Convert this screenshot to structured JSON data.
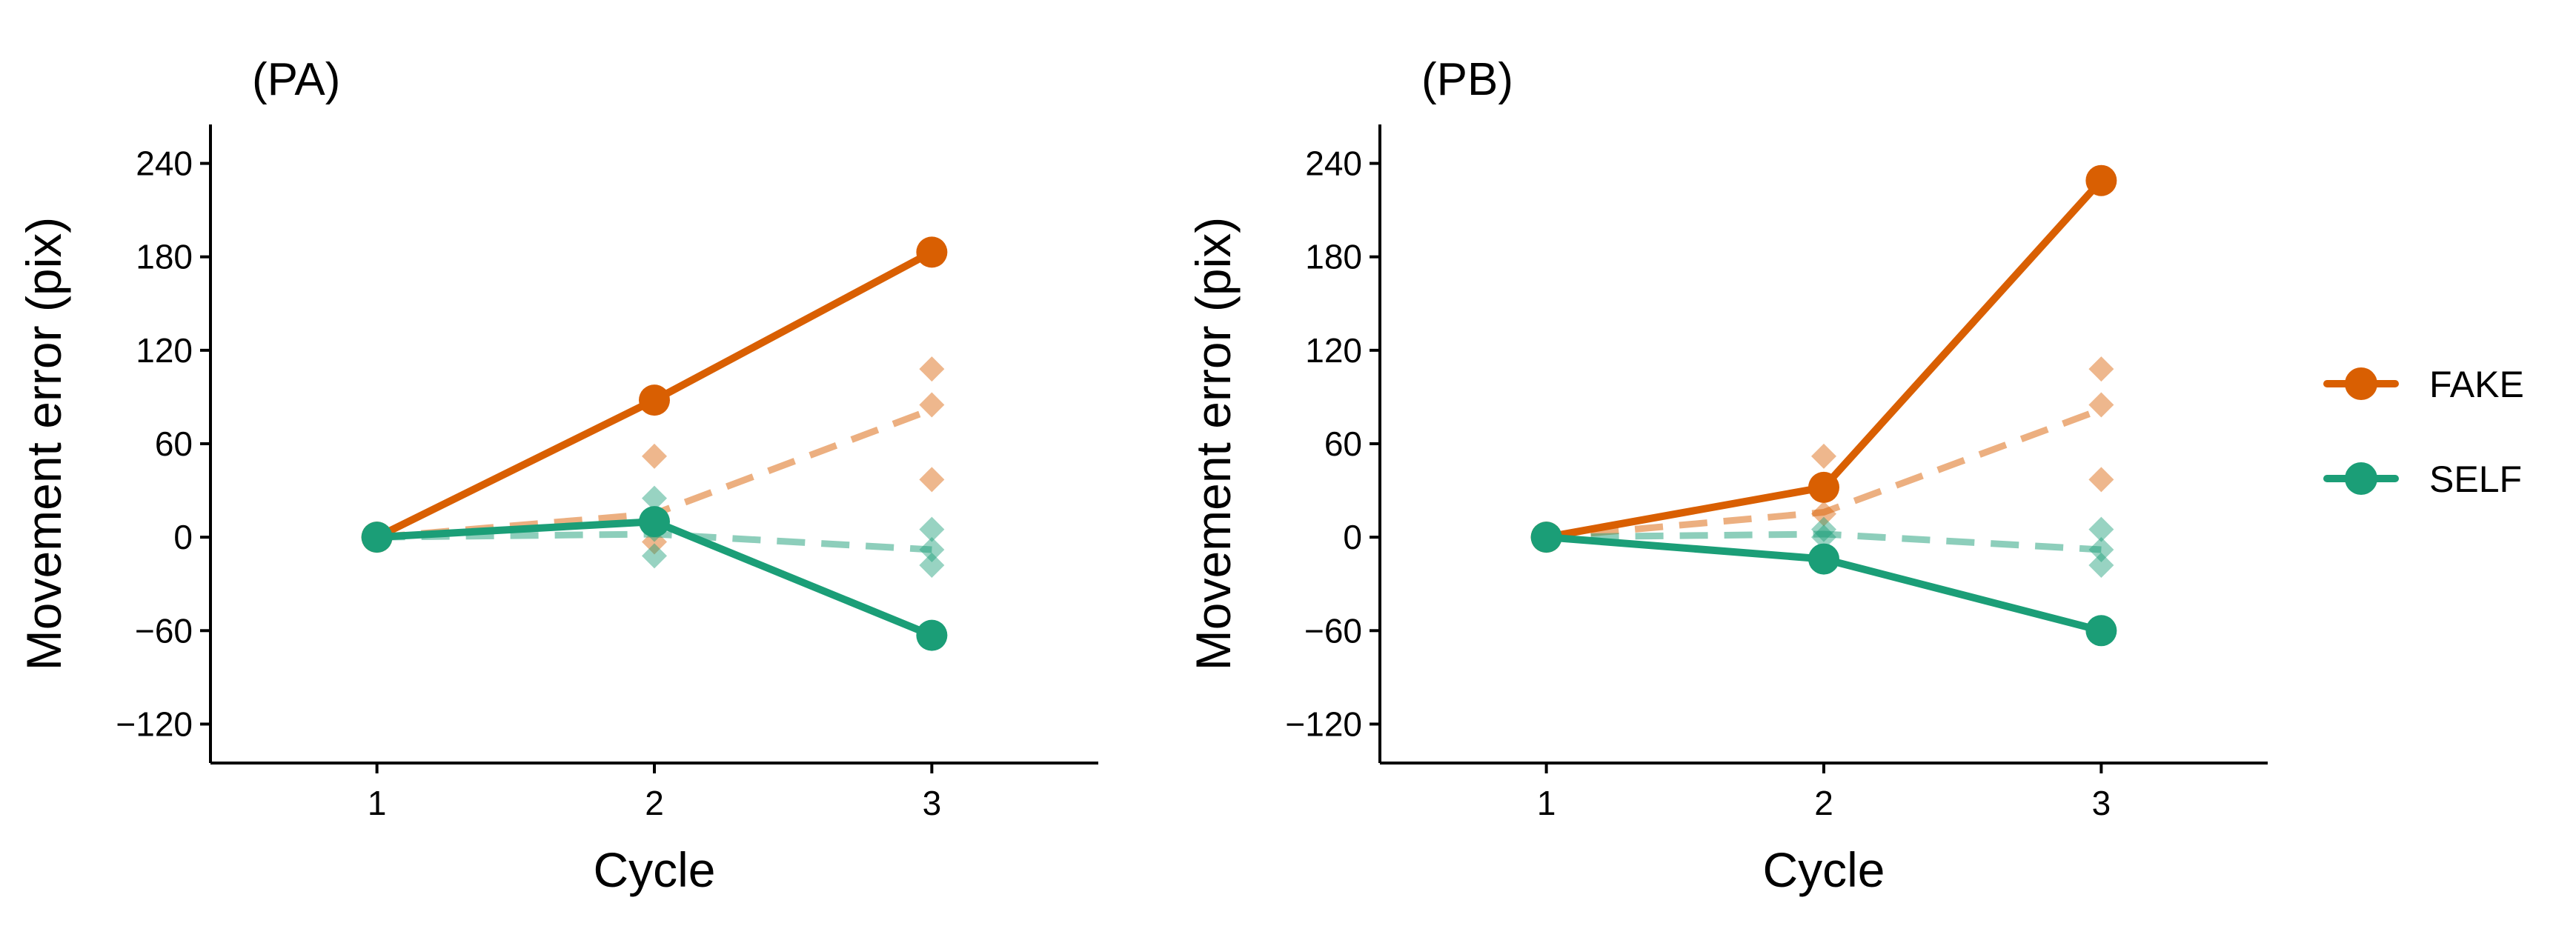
{
  "chart_data": [
    {
      "type": "line",
      "title": "(PA)",
      "xlabel": "Cycle",
      "ylabel": "Movement error (pix)",
      "x": [
        1,
        2,
        3
      ],
      "xticks": [
        "1",
        "2",
        "3"
      ],
      "xlim": [
        0.4,
        3.6
      ],
      "ylim": [
        -145,
        265
      ],
      "yticks": [
        "-120",
        "-60",
        "0",
        "60",
        "120",
        "180",
        "240"
      ],
      "grid": false,
      "series": [
        {
          "name": "FAKE",
          "color": "#D95F02",
          "values": [
            0,
            88,
            183
          ]
        },
        {
          "name": "SELF",
          "color": "#1B9E77",
          "values": [
            0,
            10,
            -63
          ]
        }
      ],
      "trend_series": [
        {
          "name": "FAKE",
          "color": "#D95F02",
          "values": [
            0,
            15,
            82
          ]
        },
        {
          "name": "SELF",
          "color": "#1B9E77",
          "values": [
            0,
            2,
            -8
          ]
        }
      ],
      "individual_points": [
        {
          "series": "FAKE",
          "x": 2,
          "y": 52
        },
        {
          "series": "FAKE",
          "x": 2,
          "y": 10
        },
        {
          "series": "FAKE",
          "x": 2,
          "y": -3
        },
        {
          "series": "FAKE",
          "x": 3,
          "y": 108
        },
        {
          "series": "FAKE",
          "x": 3,
          "y": 85
        },
        {
          "series": "FAKE",
          "x": 3,
          "y": 37
        },
        {
          "series": "SELF",
          "x": 2,
          "y": 25
        },
        {
          "series": "SELF",
          "x": 2,
          "y": 5
        },
        {
          "series": "SELF",
          "x": 2,
          "y": -12
        },
        {
          "series": "SELF",
          "x": 3,
          "y": 5
        },
        {
          "series": "SELF",
          "x": 3,
          "y": -8
        },
        {
          "series": "SELF",
          "x": 3,
          "y": -18
        }
      ]
    },
    {
      "type": "line",
      "title": "(PB)",
      "xlabel": "Cycle",
      "ylabel": "Movement error (pix)",
      "x": [
        1,
        2,
        3
      ],
      "xticks": [
        "1",
        "2",
        "3"
      ],
      "xlim": [
        0.4,
        3.6
      ],
      "ylim": [
        -145,
        265
      ],
      "yticks": [
        "-120",
        "-60",
        "0",
        "60",
        "120",
        "180",
        "240"
      ],
      "grid": false,
      "series": [
        {
          "name": "FAKE",
          "color": "#D95F02",
          "values": [
            0,
            32,
            229
          ]
        },
        {
          "name": "SELF",
          "color": "#1B9E77",
          "values": [
            0,
            -14,
            -60
          ]
        }
      ],
      "trend_series": [
        {
          "name": "FAKE",
          "color": "#D95F02",
          "values": [
            0,
            16,
            82
          ]
        },
        {
          "name": "SELF",
          "color": "#1B9E77",
          "values": [
            0,
            2,
            -8
          ]
        }
      ],
      "individual_points": [
        {
          "series": "FAKE",
          "x": 2,
          "y": 52
        },
        {
          "series": "FAKE",
          "x": 2,
          "y": 15
        },
        {
          "series": "FAKE",
          "x": 3,
          "y": 108
        },
        {
          "series": "FAKE",
          "x": 3,
          "y": 85
        },
        {
          "series": "FAKE",
          "x": 3,
          "y": 37
        },
        {
          "series": "SELF",
          "x": 2,
          "y": 5
        },
        {
          "series": "SELF",
          "x": 2,
          "y": 0
        },
        {
          "series": "SELF",
          "x": 3,
          "y": 5
        },
        {
          "series": "SELF",
          "x": 3,
          "y": -8
        },
        {
          "series": "SELF",
          "x": 3,
          "y": -18
        }
      ]
    }
  ],
  "legend": {
    "position": "right",
    "items": [
      {
        "label": "FAKE",
        "color": "#D95F02"
      },
      {
        "label": "SELF",
        "color": "#1B9E77"
      }
    ]
  }
}
